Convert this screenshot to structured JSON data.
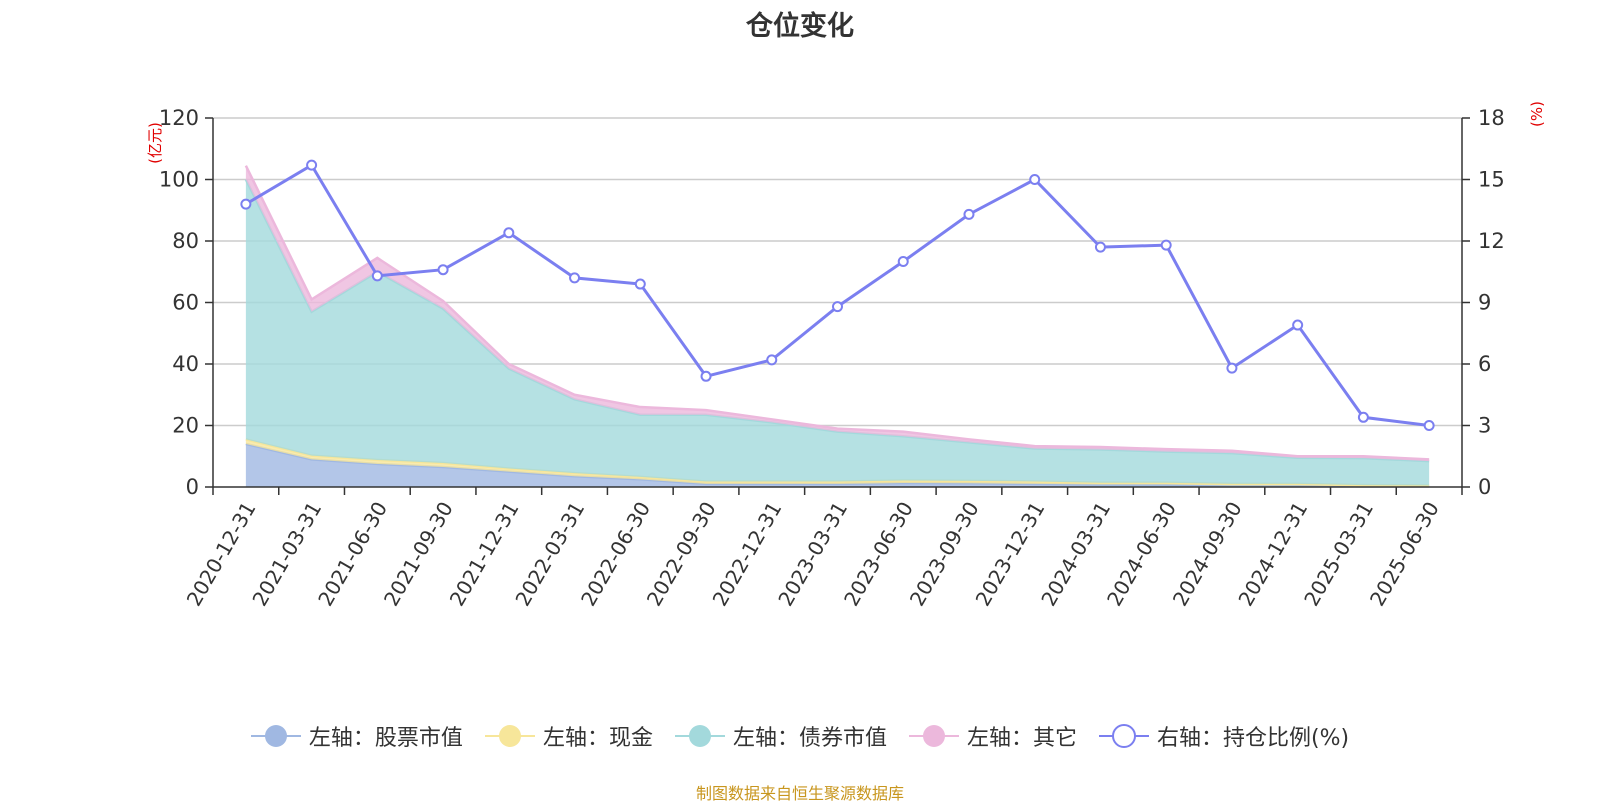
{
  "chart_data": {
    "type": "area",
    "title": "仓位变化",
    "left_axis_unit": "(亿元)",
    "right_axis_unit": "(%)",
    "left_ylim": [
      0,
      120
    ],
    "left_ticks": [
      0,
      20,
      40,
      60,
      80,
      100,
      120
    ],
    "right_ylim": [
      0,
      18
    ],
    "right_ticks": [
      0,
      3,
      6,
      9,
      12,
      15,
      18
    ],
    "categories": [
      "2020-12-31",
      "2021-03-31",
      "2021-06-30",
      "2021-09-30",
      "2021-12-31",
      "2022-03-31",
      "2022-06-30",
      "2022-09-30",
      "2022-12-31",
      "2023-03-31",
      "2023-06-30",
      "2023-09-30",
      "2023-12-31",
      "2024-03-31",
      "2024-06-30",
      "2024-09-30",
      "2024-12-31",
      "2025-03-31",
      "2025-06-30"
    ],
    "stacked_series": [
      {
        "name": "左轴：股票市值",
        "color": "#a0b8e2",
        "values": [
          14,
          9,
          7.5,
          6.5,
          5,
          3.5,
          2.5,
          1,
          1,
          1,
          1.3,
          1.2,
          1,
          0.8,
          0.8,
          0.5,
          0.5,
          0.2,
          0.2
        ]
      },
      {
        "name": "左轴：现金",
        "color": "#f7e69a",
        "values": [
          1.5,
          1.2,
          1.3,
          1.3,
          1,
          1,
          0.8,
          0.8,
          0.8,
          0.8,
          0.8,
          0.8,
          0.8,
          0.6,
          0.6,
          0.5,
          0.5,
          0.4,
          0.3
        ]
      },
      {
        "name": "左轴：债券市值",
        "color": "#a3d9dc",
        "values": [
          84.5,
          46.8,
          61.2,
          50.2,
          32.5,
          24,
          20.2,
          21.7,
          19.2,
          16.2,
          14.4,
          12.5,
          10.7,
          10.8,
          10.1,
          10,
          8.5,
          8.8,
          7.9
        ]
      },
      {
        "name": "左轴：其它",
        "color": "#ecb8dc",
        "values": [
          4.5,
          4,
          4.5,
          2.5,
          1.5,
          1.5,
          2.5,
          1.5,
          1,
          1,
          1.5,
          1,
          0.8,
          0.8,
          0.8,
          0.8,
          0.5,
          0.6,
          0.6
        ]
      }
    ],
    "line_series": {
      "name": "右轴：持仓比例(%)",
      "color": "#7b7ff0",
      "values": [
        13.8,
        15.7,
        10.3,
        10.6,
        12.4,
        10.2,
        9.9,
        5.4,
        6.2,
        8.8,
        11,
        13.3,
        15,
        11.7,
        11.8,
        5.8,
        7.9,
        3.4,
        3
      ]
    },
    "grid": true,
    "legend_position": "bottom"
  },
  "footer": "制图数据来自恒生聚源数据库"
}
